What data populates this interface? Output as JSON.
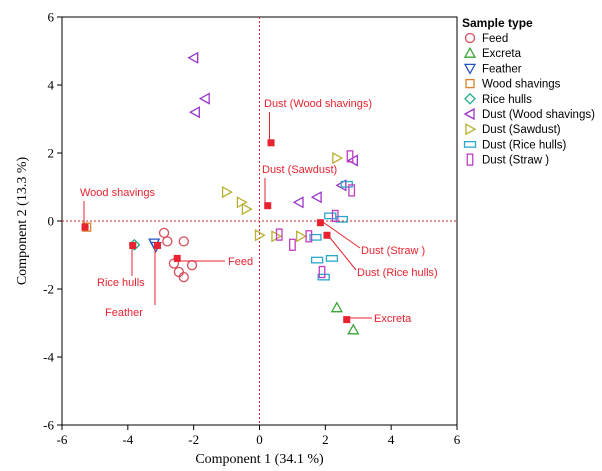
{
  "chart_data": {
    "type": "scatter",
    "title": "",
    "xlabel": "Component 1  (34.1 %)",
    "ylabel": "Component 2  (13.3 %)",
    "xlim": [
      -6,
      6
    ],
    "ylim": [
      -6,
      6
    ],
    "xticks": [
      "-6",
      "-4",
      "-2",
      "0",
      "2",
      "4",
      "6"
    ],
    "yticks": [
      "-6",
      "-4",
      "-2",
      "0",
      "2",
      "4",
      "6"
    ],
    "grid": false,
    "reference_lines": {
      "x": 0,
      "y": 0,
      "style": "dotted",
      "color": "#d62728"
    },
    "legend": {
      "title": "Sample type",
      "placement": "right"
    },
    "series": [
      {
        "name": "Feed",
        "marker": "circle",
        "color": "#d94a5a",
        "points": [
          [
            -2.9,
            -0.35
          ],
          [
            -2.3,
            -0.6
          ],
          [
            -2.6,
            -1.25
          ],
          [
            -2.05,
            -1.3
          ],
          [
            -2.45,
            -1.5
          ],
          [
            -2.3,
            -1.65
          ],
          [
            -2.8,
            -0.6
          ]
        ]
      },
      {
        "name": "Excreta",
        "marker": "triangle-up",
        "color": "#3aa635",
        "points": [
          [
            2.35,
            -2.55
          ],
          [
            2.85,
            -3.2
          ]
        ]
      },
      {
        "name": "Feather",
        "marker": "triangle-down",
        "color": "#2553c4",
        "points": [
          [
            -3.2,
            -0.65
          ],
          [
            -3.15,
            -0.75
          ]
        ]
      },
      {
        "name": "Wood shavings",
        "marker": "square",
        "color": "#d9822b",
        "points": [
          [
            -5.25,
            -0.18
          ]
        ]
      },
      {
        "name": "Rice hulls",
        "marker": "diamond",
        "color": "#1fae8a",
        "points": [
          [
            -3.8,
            -0.7
          ]
        ]
      },
      {
        "name": "Dust (Wood shavings)",
        "marker": "triangle-left",
        "color": "#9b35c9",
        "points": [
          [
            -2.0,
            4.8
          ],
          [
            -1.65,
            3.6
          ],
          [
            -1.95,
            3.2
          ],
          [
            2.5,
            1.05
          ],
          [
            2.85,
            1.78
          ],
          [
            1.75,
            0.7
          ],
          [
            1.2,
            0.55
          ]
        ]
      },
      {
        "name": "Dust (Sawdust)",
        "marker": "triangle-right",
        "color": "#b8b02e",
        "points": [
          [
            -1.0,
            0.85
          ],
          [
            -0.55,
            0.55
          ],
          [
            -0.4,
            0.35
          ],
          [
            2.35,
            1.85
          ],
          [
            0.0,
            -0.42
          ],
          [
            0.5,
            -0.45
          ],
          [
            1.25,
            -0.45
          ]
        ]
      },
      {
        "name": "Dust (Rice hulls)",
        "marker": "rect-wide",
        "color": "#2aa7c9",
        "points": [
          [
            2.65,
            1.08
          ],
          [
            2.15,
            0.15
          ],
          [
            2.5,
            0.05
          ],
          [
            1.7,
            -0.48
          ],
          [
            1.75,
            -1.15
          ],
          [
            2.2,
            -1.1
          ],
          [
            1.95,
            -1.65
          ]
        ]
      },
      {
        "name": "Dust (Straw )",
        "marker": "rect-tall",
        "color": "#c23dc4",
        "points": [
          [
            2.75,
            1.9
          ],
          [
            2.8,
            0.9
          ],
          [
            2.3,
            0.15
          ],
          [
            0.6,
            -0.4
          ],
          [
            1.0,
            -0.7
          ],
          [
            1.5,
            -0.45
          ],
          [
            1.9,
            -1.5
          ]
        ]
      }
    ],
    "means": {
      "marker": "filled-square",
      "color": "#e8232f",
      "points": [
        {
          "label": "Dust (Wood shavings)",
          "x": 0.35,
          "y": 2.3
        },
        {
          "label": "Dust (Sawdust)",
          "x": 0.25,
          "y": 0.45
        },
        {
          "label": "Wood shavings",
          "x": -5.3,
          "y": -0.18
        },
        {
          "label": "Rice hulls",
          "x": -3.85,
          "y": -0.72
        },
        {
          "label": "Feather",
          "x": -3.1,
          "y": -0.72
        },
        {
          "label": "Feed",
          "x": -2.5,
          "y": -1.1
        },
        {
          "label": "Dust (Straw )",
          "x": 1.85,
          "y": -0.05
        },
        {
          "label": "Dust (Rice hulls)",
          "x": 2.05,
          "y": -0.42
        },
        {
          "label": "Excreta",
          "x": 2.65,
          "y": -2.9
        }
      ]
    }
  }
}
